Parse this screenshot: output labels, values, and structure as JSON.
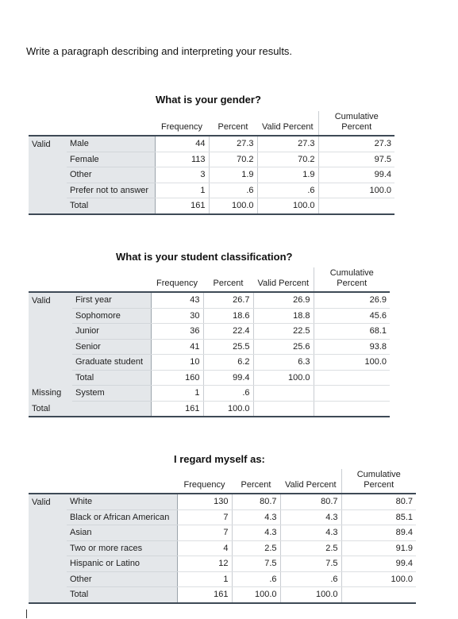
{
  "instruction": "Write a paragraph describing and interpreting your results.",
  "tables": [
    {
      "title": "What is your gender?",
      "headers": {
        "frequency": "Frequency",
        "percent": "Percent",
        "valid_percent": "Valid Percent",
        "cumulative_line1": "Cumulative",
        "cumulative_line2": "Percent"
      },
      "rows": [
        {
          "group": "Valid",
          "label": "Male",
          "frequency": "44",
          "percent": "27.3",
          "valid_percent": "27.3",
          "cumulative": "27.3"
        },
        {
          "group": "",
          "label": "Female",
          "frequency": "113",
          "percent": "70.2",
          "valid_percent": "70.2",
          "cumulative": "97.5"
        },
        {
          "group": "",
          "label": "Other",
          "frequency": "3",
          "percent": "1.9",
          "valid_percent": "1.9",
          "cumulative": "99.4"
        },
        {
          "group": "",
          "label": "Prefer not to answer",
          "frequency": "1",
          "percent": ".6",
          "valid_percent": ".6",
          "cumulative": "100.0"
        },
        {
          "group": "",
          "label": "Total",
          "frequency": "161",
          "percent": "100.0",
          "valid_percent": "100.0",
          "cumulative": ""
        }
      ]
    },
    {
      "title": "What is your student classification?",
      "headers": {
        "frequency": "Frequency",
        "percent": "Percent",
        "valid_percent": "Valid Percent",
        "cumulative_line1": "Cumulative",
        "cumulative_line2": "Percent"
      },
      "rows": [
        {
          "group": "Valid",
          "label": "First year",
          "frequency": "43",
          "percent": "26.7",
          "valid_percent": "26.9",
          "cumulative": "26.9"
        },
        {
          "group": "",
          "label": "Sophomore",
          "frequency": "30",
          "percent": "18.6",
          "valid_percent": "18.8",
          "cumulative": "45.6"
        },
        {
          "group": "",
          "label": "Junior",
          "frequency": "36",
          "percent": "22.4",
          "valid_percent": "22.5",
          "cumulative": "68.1"
        },
        {
          "group": "",
          "label": "Senior",
          "frequency": "41",
          "percent": "25.5",
          "valid_percent": "25.6",
          "cumulative": "93.8"
        },
        {
          "group": "",
          "label": "Graduate student",
          "frequency": "10",
          "percent": "6.2",
          "valid_percent": "6.3",
          "cumulative": "100.0"
        },
        {
          "group": "",
          "label": "Total",
          "frequency": "160",
          "percent": "99.4",
          "valid_percent": "100.0",
          "cumulative": ""
        },
        {
          "group": "Missing",
          "label": "System",
          "frequency": "1",
          "percent": ".6",
          "valid_percent": "",
          "cumulative": ""
        },
        {
          "group": "Total",
          "label": "",
          "frequency": "161",
          "percent": "100.0",
          "valid_percent": "",
          "cumulative": ""
        }
      ]
    },
    {
      "title": "I regard myself as:",
      "headers": {
        "frequency": "Frequency",
        "percent": "Percent",
        "valid_percent": "Valid Percent",
        "cumulative_line1": "Cumulative",
        "cumulative_line2": "Percent"
      },
      "rows": [
        {
          "group": "Valid",
          "label": "White",
          "frequency": "130",
          "percent": "80.7",
          "valid_percent": "80.7",
          "cumulative": "80.7"
        },
        {
          "group": "",
          "label": "Black or African American",
          "frequency": "7",
          "percent": "4.3",
          "valid_percent": "4.3",
          "cumulative": "85.1"
        },
        {
          "group": "",
          "label": "Asian",
          "frequency": "7",
          "percent": "4.3",
          "valid_percent": "4.3",
          "cumulative": "89.4"
        },
        {
          "group": "",
          "label": "Two or more races",
          "frequency": "4",
          "percent": "2.5",
          "valid_percent": "2.5",
          "cumulative": "91.9"
        },
        {
          "group": "",
          "label": "Hispanic or Latino",
          "frequency": "12",
          "percent": "7.5",
          "valid_percent": "7.5",
          "cumulative": "99.4"
        },
        {
          "group": "",
          "label": "Other",
          "frequency": "1",
          "percent": ".6",
          "valid_percent": ".6",
          "cumulative": "100.0"
        },
        {
          "group": "",
          "label": "Total",
          "frequency": "161",
          "percent": "100.0",
          "valid_percent": "100.0",
          "cumulative": ""
        }
      ]
    }
  ]
}
